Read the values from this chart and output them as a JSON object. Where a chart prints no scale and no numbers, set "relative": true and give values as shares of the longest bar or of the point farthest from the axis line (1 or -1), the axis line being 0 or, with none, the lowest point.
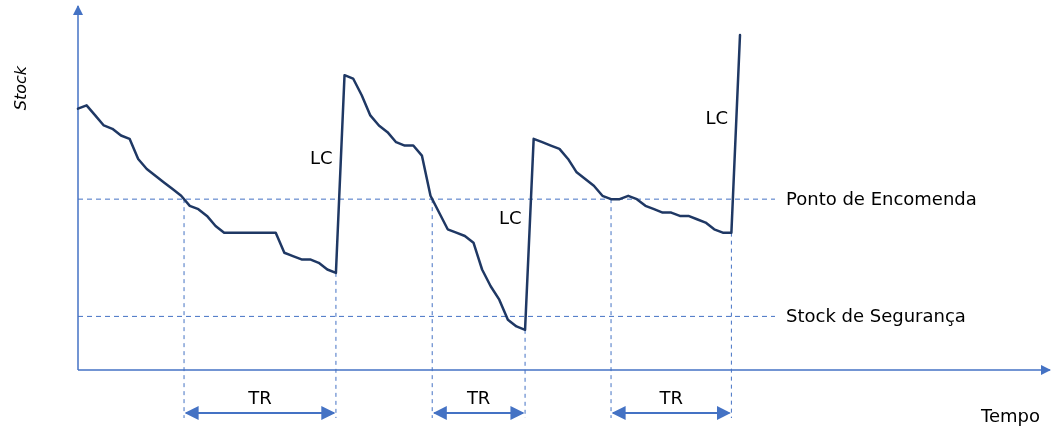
{
  "chart_data": {
    "type": "line",
    "relative": true,
    "ylabel": "Stock",
    "categories": [
      null,
      null,
      null,
      null,
      null,
      null,
      null,
      null,
      null,
      null,
      null,
      null,
      null,
      null,
      null,
      null,
      null,
      null,
      null,
      null,
      null,
      null,
      null,
      null,
      null,
      null,
      null,
      null,
      null,
      null,
      null,
      null,
      null,
      null,
      null,
      null,
      null,
      null,
      null,
      null,
      null,
      null,
      null,
      null,
      null,
      null,
      null,
      null,
      null,
      null,
      null,
      null,
      null,
      null,
      null,
      null,
      null,
      null,
      null,
      null,
      null,
      null,
      null,
      null,
      null,
      null,
      null,
      null,
      null,
      null,
      null,
      null,
      null,
      null,
      null,
      null,
      null,
      null
    ],
    "series": [
      {
        "color": "#1f3864",
        "values": [
          0.78,
          0.79,
          0.76,
          0.73,
          0.72,
          0.7,
          0.69,
          0.63,
          0.6,
          0.58,
          0.56,
          0.54,
          0.52,
          0.49,
          0.48,
          0.46,
          0.43,
          0.41,
          0.41,
          0.41,
          0.41,
          0.41,
          0.41,
          0.41,
          0.35,
          0.34,
          0.33,
          0.33,
          0.32,
          0.3,
          0.29,
          0.88,
          0.87,
          0.82,
          0.76,
          0.73,
          0.71,
          0.68,
          0.67,
          0.67,
          0.64,
          0.52,
          0.47,
          0.42,
          0.41,
          0.4,
          0.38,
          0.3,
          0.25,
          0.21,
          0.15,
          0.13,
          0.12,
          0.69,
          0.68,
          0.67,
          0.66,
          0.63,
          0.59,
          0.57,
          0.55,
          0.52,
          0.51,
          0.51,
          0.52,
          0.51,
          0.49,
          0.48,
          0.47,
          0.47,
          0.46,
          0.46,
          0.45,
          0.44,
          0.42,
          0.41,
          0.41,
          1
        ]
      }
    ],
    "ref_lines": [
      {
        "axis": "y",
        "value": 0.51,
        "label": "Ponto de Encomenda",
        "color": "#4472c4",
        "line_style": "dashed"
      },
      {
        "axis": "y",
        "value": 0.16,
        "label": "Stock de Segurança",
        "color": "#4472c4",
        "line_style": "dashed"
      }
    ],
    "annotations": [
      "LC",
      "LC",
      "LC",
      "TR",
      "TR",
      "TR",
      "Tempo"
    ]
  }
}
